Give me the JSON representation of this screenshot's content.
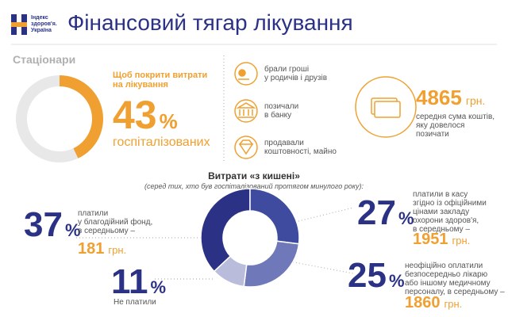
{
  "header": {
    "logo_lines": [
      "Індекс",
      "здоров'я.",
      "Україна"
    ],
    "title": "Фінансовий тягар лікування"
  },
  "section": "Стаціонари",
  "percent_unit": "%",
  "currency": "грн.",
  "hospital": {
    "caption_lines": [
      "Щоб покрити витрати",
      "на лікування"
    ],
    "percent": 43,
    "color": "#f0a030",
    "subcaption": "госпіталізованих"
  },
  "sources": [
    {
      "lines": [
        "брали гроші",
        "у родичів і друзів"
      ]
    },
    {
      "lines": [
        "позичали",
        "в банку"
      ]
    },
    {
      "lines": [
        "продавали",
        "коштовності, майно"
      ]
    }
  ],
  "average": {
    "amount": 4865,
    "caption_lines": [
      "середня сума коштів,",
      "яку довелося",
      "позичати"
    ]
  },
  "out_of_pocket": {
    "title": "Витрати «з кишені»",
    "subtitle": "(серед тих, хто був госпіталізований протягом минулого року):",
    "segments": [
      {
        "percent": 37,
        "color": "#2b3286",
        "lines": [
          "платили",
          "у благодійний фонд,",
          "в середньому –"
        ],
        "amount": 181
      },
      {
        "percent": 27,
        "color": "#3e4b9f",
        "lines": [
          "платили в касу",
          "згідно із офіційними",
          "цінами закладу",
          "охорони здоров'я,",
          "в середньому –"
        ],
        "amount": 1951
      },
      {
        "percent": 25,
        "color": "#6f78b8",
        "lines": [
          "неофіційно оплатили",
          "безпосередньо лікарю",
          "або іншому медичному",
          "персоналу, в середньому –"
        ],
        "amount": 1860
      },
      {
        "percent": 11,
        "color": "#b9bddb",
        "lines": [
          "Не платили"
        ]
      }
    ]
  }
}
